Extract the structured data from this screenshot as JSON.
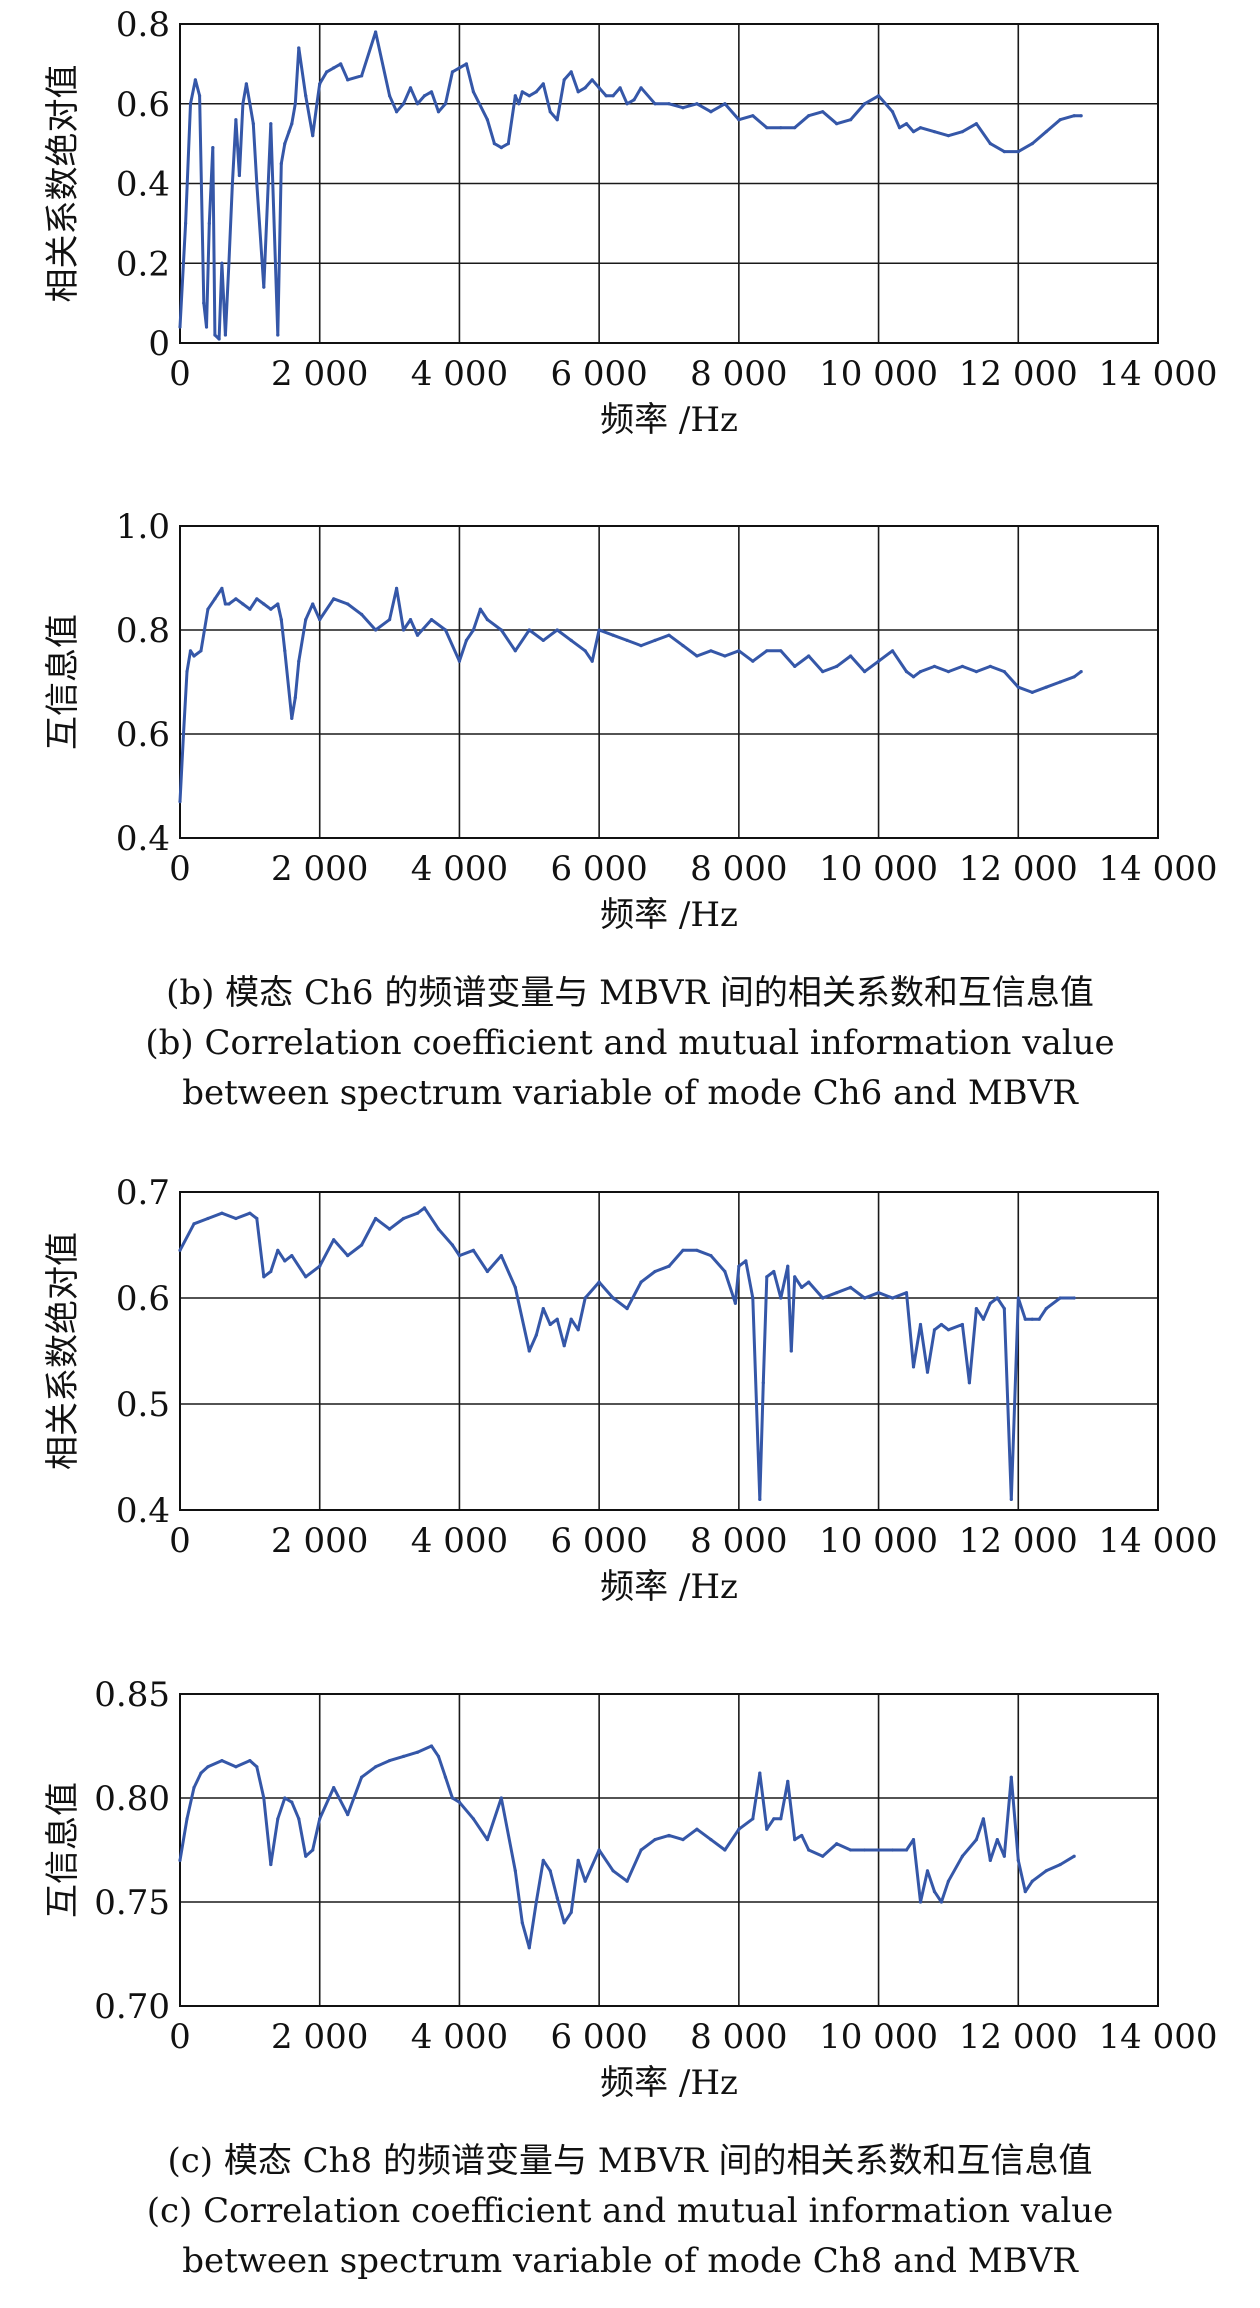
{
  "figure": {
    "caption_b": {
      "zh": "(b) 模态 Ch6 的频谱变量与 MBVR 间的相关系数和互信息值",
      "en_line1": "(b) Correlation coefficient and mutual information value",
      "en_line2": "between spectrum variable of mode Ch6 and MBVR"
    },
    "caption_c": {
      "zh": "(c) 模态 Ch8 的频谱变量与 MBVR 间的相关系数和互信息值",
      "en_line1": "(c) Correlation coefficient and mutual information value",
      "en_line2": "between spectrum variable of mode Ch8 and MBVR"
    },
    "line_color": "#3557a8"
  },
  "chart_data": [
    {
      "type": "line",
      "xlabel": "频率 /Hz",
      "ylabel": "相关系数绝对值",
      "xlim": [
        0,
        14000
      ],
      "ylim": [
        0,
        0.8
      ],
      "xticks": [
        0,
        2000,
        4000,
        6000,
        8000,
        10000,
        12000,
        14000
      ],
      "xtick_labels": [
        "0",
        "2 000",
        "4 000",
        "6 000",
        "8 000",
        "10 000",
        "12 000",
        "14 000"
      ],
      "yticks": [
        0,
        0.2,
        0.4,
        0.6,
        0.8
      ],
      "ytick_labels": [
        "0",
        "0.2",
        "0.4",
        "0.6",
        "0.8"
      ],
      "grid": true,
      "series": [
        {
          "x": [
            0,
            80,
            150,
            220,
            280,
            340,
            380,
            420,
            470,
            500,
            560,
            600,
            650,
            700,
            750,
            800,
            850,
            900,
            950,
            1000,
            1050,
            1100,
            1200,
            1300,
            1400,
            1450,
            1500,
            1560,
            1600,
            1650,
            1700,
            1800,
            1900,
            1960,
            2000,
            2100,
            2200,
            2300,
            2400,
            2600,
            2800,
            3000,
            3100,
            3200,
            3300,
            3400,
            3500,
            3600,
            3700,
            3800,
            3900,
            4000,
            4100,
            4200,
            4400,
            4500,
            4600,
            4700,
            4800,
            4850,
            4900,
            5000,
            5100,
            5200,
            5300,
            5400,
            5500,
            5600,
            5700,
            5800,
            5900,
            6000,
            6100,
            6200,
            6300,
            6400,
            6500,
            6600,
            6800,
            7000,
            7200,
            7400,
            7600,
            7800,
            8000,
            8200,
            8400,
            8600,
            8800,
            9000,
            9200,
            9400,
            9600,
            9800,
            10000,
            10200,
            10300,
            10400,
            10500,
            10600,
            10800,
            11000,
            11200,
            11400,
            11600,
            11800,
            12000,
            12200,
            12400,
            12600,
            12800,
            12900
          ],
          "y": [
            0.04,
            0.3,
            0.6,
            0.66,
            0.62,
            0.1,
            0.04,
            0.3,
            0.49,
            0.02,
            0.01,
            0.2,
            0.02,
            0.2,
            0.4,
            0.56,
            0.42,
            0.6,
            0.65,
            0.6,
            0.55,
            0.4,
            0.14,
            0.55,
            0.02,
            0.45,
            0.5,
            0.53,
            0.55,
            0.6,
            0.74,
            0.62,
            0.52,
            0.6,
            0.65,
            0.68,
            0.69,
            0.7,
            0.66,
            0.67,
            0.78,
            0.62,
            0.58,
            0.6,
            0.64,
            0.6,
            0.62,
            0.63,
            0.58,
            0.6,
            0.68,
            0.69,
            0.7,
            0.63,
            0.56,
            0.5,
            0.49,
            0.5,
            0.62,
            0.6,
            0.63,
            0.62,
            0.63,
            0.65,
            0.58,
            0.56,
            0.66,
            0.68,
            0.63,
            0.64,
            0.66,
            0.64,
            0.62,
            0.62,
            0.64,
            0.6,
            0.61,
            0.64,
            0.6,
            0.6,
            0.59,
            0.6,
            0.58,
            0.6,
            0.56,
            0.57,
            0.54,
            0.54,
            0.54,
            0.57,
            0.58,
            0.55,
            0.56,
            0.6,
            0.62,
            0.58,
            0.54,
            0.55,
            0.53,
            0.54,
            0.53,
            0.52,
            0.53,
            0.55,
            0.5,
            0.48,
            0.48,
            0.5,
            0.53,
            0.56,
            0.57,
            0.57
          ]
        }
      ]
    },
    {
      "type": "line",
      "xlabel": "频率 /Hz",
      "ylabel": "互信息值",
      "xlim": [
        0,
        14000
      ],
      "ylim": [
        0.4,
        1.0
      ],
      "xticks": [
        0,
        2000,
        4000,
        6000,
        8000,
        10000,
        12000,
        14000
      ],
      "xtick_labels": [
        "0",
        "2 000",
        "4 000",
        "6 000",
        "8 000",
        "10 000",
        "12 000",
        "14 000"
      ],
      "yticks": [
        0.4,
        0.6,
        0.8,
        1.0
      ],
      "ytick_labels": [
        "0.4",
        "0.6",
        "0.8",
        "1.0"
      ],
      "grid": true,
      "series": [
        {
          "x": [
            0,
            50,
            100,
            150,
            200,
            300,
            400,
            500,
            600,
            650,
            700,
            800,
            900,
            1000,
            1100,
            1200,
            1300,
            1400,
            1450,
            1500,
            1600,
            1650,
            1700,
            1800,
            1900,
            2000,
            2200,
            2400,
            2600,
            2800,
            3000,
            3100,
            3200,
            3300,
            3400,
            3600,
            3800,
            4000,
            4100,
            4200,
            4300,
            4400,
            4600,
            4800,
            5000,
            5200,
            5400,
            5600,
            5800,
            5900,
            6000,
            6200,
            6400,
            6600,
            6800,
            7000,
            7200,
            7400,
            7600,
            7800,
            8000,
            8200,
            8400,
            8600,
            8800,
            9000,
            9200,
            9400,
            9600,
            9800,
            10000,
            10200,
            10400,
            10500,
            10600,
            10800,
            11000,
            11200,
            11400,
            11600,
            11800,
            12000,
            12200,
            12400,
            12600,
            12800,
            12900
          ],
          "y": [
            0.47,
            0.6,
            0.72,
            0.76,
            0.75,
            0.76,
            0.84,
            0.86,
            0.88,
            0.85,
            0.85,
            0.86,
            0.85,
            0.84,
            0.86,
            0.85,
            0.84,
            0.85,
            0.82,
            0.76,
            0.63,
            0.67,
            0.74,
            0.82,
            0.85,
            0.82,
            0.86,
            0.85,
            0.83,
            0.8,
            0.82,
            0.88,
            0.8,
            0.82,
            0.79,
            0.82,
            0.8,
            0.74,
            0.78,
            0.8,
            0.84,
            0.82,
            0.8,
            0.76,
            0.8,
            0.78,
            0.8,
            0.78,
            0.76,
            0.74,
            0.8,
            0.79,
            0.78,
            0.77,
            0.78,
            0.79,
            0.77,
            0.75,
            0.76,
            0.75,
            0.76,
            0.74,
            0.76,
            0.76,
            0.73,
            0.75,
            0.72,
            0.73,
            0.75,
            0.72,
            0.74,
            0.76,
            0.72,
            0.71,
            0.72,
            0.73,
            0.72,
            0.73,
            0.72,
            0.73,
            0.72,
            0.69,
            0.68,
            0.69,
            0.7,
            0.71,
            0.72
          ]
        }
      ]
    },
    {
      "type": "line",
      "xlabel": "频率 /Hz",
      "ylabel": "相关系数绝对值",
      "xlim": [
        0,
        14000
      ],
      "ylim": [
        0.4,
        0.7
      ],
      "xticks": [
        0,
        2000,
        4000,
        6000,
        8000,
        10000,
        12000,
        14000
      ],
      "xtick_labels": [
        "0",
        "2 000",
        "4 000",
        "6 000",
        "8 000",
        "10 000",
        "12 000",
        "14 000"
      ],
      "yticks": [
        0.4,
        0.5,
        0.6,
        0.7
      ],
      "ytick_labels": [
        "0.4",
        "0.5",
        "0.6",
        "0.7"
      ],
      "grid": true,
      "series": [
        {
          "x": [
            0,
            200,
            400,
            600,
            800,
            1000,
            1100,
            1200,
            1300,
            1400,
            1500,
            1600,
            1800,
            2000,
            2200,
            2400,
            2600,
            2800,
            3000,
            3200,
            3400,
            3500,
            3700,
            3900,
            4000,
            4200,
            4400,
            4600,
            4800,
            5000,
            5100,
            5200,
            5300,
            5400,
            5500,
            5600,
            5700,
            5800,
            6000,
            6200,
            6400,
            6600,
            6800,
            7000,
            7200,
            7400,
            7600,
            7800,
            7950,
            8000,
            8100,
            8200,
            8300,
            8350,
            8400,
            8500,
            8600,
            8700,
            8750,
            8800,
            8900,
            9000,
            9200,
            9400,
            9600,
            9800,
            10000,
            10200,
            10400,
            10500,
            10600,
            10700,
            10800,
            10900,
            11000,
            11200,
            11300,
            11400,
            11500,
            11600,
            11700,
            11800,
            11900,
            12000,
            12100,
            12200,
            12300,
            12400,
            12600,
            12800
          ],
          "y": [
            0.645,
            0.67,
            0.675,
            0.68,
            0.675,
            0.68,
            0.675,
            0.62,
            0.625,
            0.645,
            0.635,
            0.64,
            0.62,
            0.63,
            0.655,
            0.64,
            0.65,
            0.675,
            0.665,
            0.675,
            0.68,
            0.685,
            0.665,
            0.65,
            0.64,
            0.645,
            0.625,
            0.64,
            0.61,
            0.55,
            0.565,
            0.59,
            0.575,
            0.58,
            0.555,
            0.58,
            0.57,
            0.6,
            0.615,
            0.6,
            0.59,
            0.615,
            0.625,
            0.63,
            0.645,
            0.645,
            0.64,
            0.625,
            0.595,
            0.63,
            0.635,
            0.6,
            0.41,
            0.52,
            0.62,
            0.625,
            0.6,
            0.63,
            0.55,
            0.62,
            0.61,
            0.615,
            0.6,
            0.605,
            0.61,
            0.6,
            0.605,
            0.6,
            0.605,
            0.535,
            0.575,
            0.53,
            0.57,
            0.575,
            0.57,
            0.575,
            0.52,
            0.59,
            0.58,
            0.595,
            0.6,
            0.59,
            0.41,
            0.6,
            0.58,
            0.58,
            0.58,
            0.59,
            0.6,
            0.6
          ]
        }
      ]
    },
    {
      "type": "line",
      "xlabel": "频率 /Hz",
      "ylabel": "互信息值",
      "xlim": [
        0,
        14000
      ],
      "ylim": [
        0.7,
        0.85
      ],
      "xticks": [
        0,
        2000,
        4000,
        6000,
        8000,
        10000,
        12000,
        14000
      ],
      "xtick_labels": [
        "0",
        "2 000",
        "4 000",
        "6 000",
        "8 000",
        "10 000",
        "12 000",
        "14 000"
      ],
      "yticks": [
        0.7,
        0.75,
        0.8,
        0.85
      ],
      "ytick_labels": [
        "0.70",
        "0.75",
        "0.80",
        "0.85"
      ],
      "grid": true,
      "series": [
        {
          "x": [
            0,
            100,
            200,
            300,
            400,
            600,
            800,
            1000,
            1100,
            1200,
            1300,
            1400,
            1500,
            1600,
            1700,
            1800,
            1900,
            2000,
            2200,
            2400,
            2600,
            2800,
            3000,
            3200,
            3400,
            3600,
            3700,
            3800,
            3900,
            4000,
            4200,
            4400,
            4600,
            4800,
            4900,
            5000,
            5100,
            5200,
            5300,
            5400,
            5500,
            5600,
            5700,
            5800,
            6000,
            6200,
            6400,
            6600,
            6800,
            7000,
            7200,
            7400,
            7600,
            7800,
            8000,
            8200,
            8300,
            8400,
            8500,
            8600,
            8700,
            8800,
            8900,
            9000,
            9200,
            9400,
            9600,
            9800,
            10000,
            10200,
            10400,
            10500,
            10600,
            10700,
            10800,
            10900,
            11000,
            11200,
            11400,
            11500,
            11600,
            11700,
            11800,
            11900,
            12000,
            12100,
            12200,
            12400,
            12600,
            12800
          ],
          "y": [
            0.77,
            0.79,
            0.805,
            0.812,
            0.815,
            0.818,
            0.815,
            0.818,
            0.815,
            0.8,
            0.768,
            0.79,
            0.8,
            0.798,
            0.79,
            0.772,
            0.775,
            0.79,
            0.805,
            0.792,
            0.81,
            0.815,
            0.818,
            0.82,
            0.822,
            0.825,
            0.82,
            0.81,
            0.8,
            0.798,
            0.79,
            0.78,
            0.8,
            0.765,
            0.74,
            0.728,
            0.75,
            0.77,
            0.765,
            0.752,
            0.74,
            0.745,
            0.77,
            0.76,
            0.775,
            0.765,
            0.76,
            0.775,
            0.78,
            0.782,
            0.78,
            0.785,
            0.78,
            0.775,
            0.785,
            0.79,
            0.812,
            0.785,
            0.79,
            0.79,
            0.808,
            0.78,
            0.782,
            0.775,
            0.772,
            0.778,
            0.775,
            0.775,
            0.775,
            0.775,
            0.775,
            0.78,
            0.75,
            0.765,
            0.755,
            0.75,
            0.76,
            0.772,
            0.78,
            0.79,
            0.77,
            0.78,
            0.772,
            0.81,
            0.77,
            0.755,
            0.76,
            0.765,
            0.768,
            0.772
          ]
        }
      ]
    }
  ]
}
